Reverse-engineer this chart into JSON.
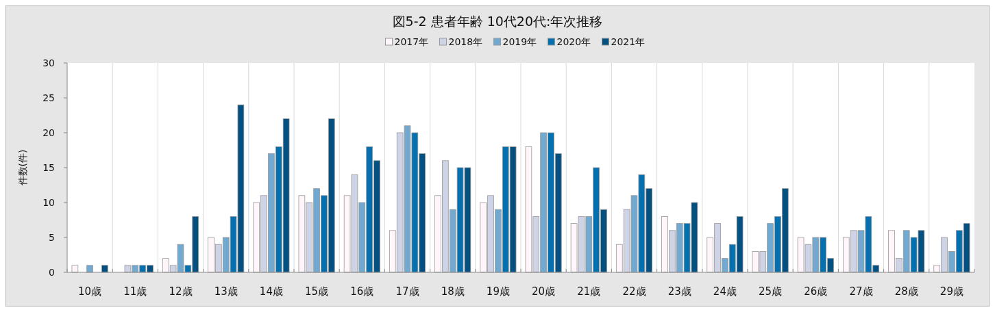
{
  "chart_data": {
    "type": "bar",
    "title": "図5-2  患者年齢 10代20代:年次推移",
    "ylabel": "件数(件)",
    "categories": [
      "10歳",
      "11歳",
      "12歳",
      "13歳",
      "14歳",
      "15歳",
      "16歳",
      "17歳",
      "18歳",
      "19歳",
      "20歳",
      "21歳",
      "22歳",
      "23歳",
      "24歳",
      "25歳",
      "26歳",
      "27歳",
      "28歳",
      "29歳"
    ],
    "series": [
      {
        "name": "2017年",
        "color": "#fff5fa",
        "values": [
          1,
          0,
          2,
          5,
          10,
          11,
          11,
          6,
          11,
          10,
          18,
          7,
          4,
          8,
          5,
          3,
          5,
          5,
          6,
          1
        ]
      },
      {
        "name": "2018年",
        "color": "#cfd3e6",
        "values": [
          0,
          1,
          1,
          4,
          11,
          10,
          14,
          20,
          16,
          11,
          8,
          8,
          9,
          6,
          7,
          3,
          4,
          6,
          2,
          5
        ]
      },
      {
        "name": "2019年",
        "color": "#72a9d0",
        "values": [
          1,
          1,
          4,
          5,
          17,
          12,
          10,
          21,
          9,
          9,
          20,
          8,
          11,
          7,
          2,
          7,
          5,
          6,
          6,
          3
        ]
      },
      {
        "name": "2020年",
        "color": "#0570b0",
        "values": [
          0,
          1,
          1,
          8,
          18,
          11,
          18,
          20,
          15,
          18,
          20,
          15,
          14,
          7,
          4,
          8,
          5,
          8,
          5,
          6
        ]
      },
      {
        "name": "2021年",
        "color": "#045080",
        "values": [
          1,
          1,
          8,
          24,
          22,
          22,
          16,
          17,
          15,
          18,
          17,
          9,
          12,
          10,
          8,
          12,
          2,
          1,
          6,
          7
        ]
      }
    ],
    "ylim": [
      0,
      30
    ],
    "yticks": [
      0,
      5,
      10,
      15,
      20,
      25,
      30
    ],
    "grid": "x",
    "legend": "top"
  }
}
